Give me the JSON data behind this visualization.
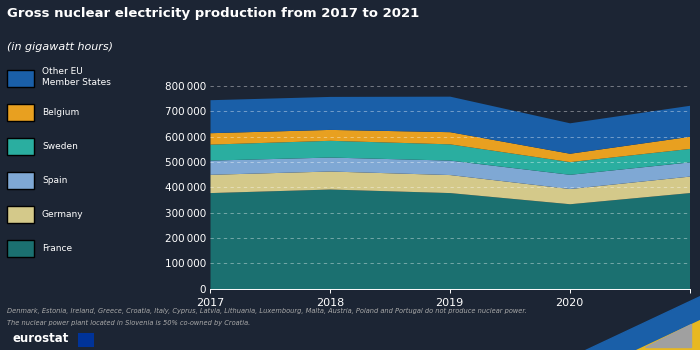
{
  "title": "Gross nuclear electricity production from 2017 to 2021",
  "subtitle": "(in gigawatt hours)",
  "years": [
    2017,
    2018,
    2019,
    2020,
    2021
  ],
  "series": {
    "France": [
      379000,
      393000,
      379000,
      335000,
      379000
    ],
    "Germany": [
      72000,
      71000,
      71000,
      60000,
      65000
    ],
    "Spain": [
      56000,
      55000,
      57000,
      56000,
      56000
    ],
    "Sweden": [
      63000,
      66000,
      64000,
      50000,
      53000
    ],
    "Belgium": [
      45000,
      43000,
      48000,
      33000,
      48000
    ],
    "Other EU Member States": [
      130000,
      130000,
      140000,
      120000,
      122000
    ]
  },
  "colors": {
    "France": "#1b7070",
    "Germany": "#d4c98a",
    "Spain": "#7fa8d4",
    "Sweden": "#2aaea0",
    "Belgium": "#e8a020",
    "Other EU Member States": "#1a5fa8"
  },
  "background_color": "#1c2534",
  "plot_bg_color": "#1c2534",
  "text_color": "#ffffff",
  "grid_color": "#ffffff",
  "axis_color": "#ffffff",
  "ylim": [
    0,
    800000
  ],
  "yticks": [
    0,
    100000,
    200000,
    300000,
    400000,
    500000,
    600000,
    700000,
    800000
  ],
  "footnote1": "Denmark, Estonia, Ireland, Greece, Croatia, Italy, Cyprus, Latvia, Lithuania, Luxembourg, Malta, Austria, Poland and Portugal do not produce nuclear power.",
  "footnote2": "The nuclear power plant located in Slovenia is 50% co-owned by Croatia.",
  "legend_order": [
    "Other EU Member States",
    "Belgium",
    "Sweden",
    "Spain",
    "Germany",
    "France"
  ]
}
